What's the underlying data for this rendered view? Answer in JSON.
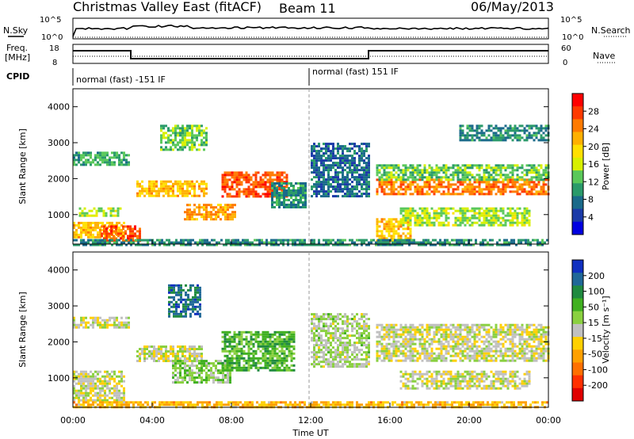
{
  "header": {
    "station": "Christmas Valley East (fitACF)",
    "beam": "Beam 11",
    "date": "06/May/2013"
  },
  "strips": {
    "nsky_label": "N.Sky",
    "nsearch_label": "N.Search",
    "nsky_ticks": [
      "10^5",
      "10^0"
    ],
    "nsearch_ticks": [
      "10^5",
      "10^0"
    ],
    "freq_label_line1": "Freq.",
    "freq_label_line2": "[MHz]",
    "freq_ticks": [
      "18",
      "8"
    ],
    "nave_label": "Nave",
    "nave_ticks": [
      "60",
      "0"
    ],
    "cpid_label": "CPID",
    "cpid_segments": [
      "normal (fast) -151 IF",
      "normal (fast) 151 IF"
    ]
  },
  "axes": {
    "ylabel": "Slant Range [km]",
    "xlabel": "Time UT",
    "x_ticks": [
      "00:00",
      "04:00",
      "08:00",
      "12:00",
      "16:00",
      "20:00",
      "00:00"
    ],
    "y_ticks": [
      "1000",
      "2000",
      "3000",
      "4000"
    ]
  },
  "colorbars": {
    "power_label": "Power [dB]",
    "power_ticks": [
      "28",
      "24",
      "20",
      "16",
      "12",
      "8",
      "4"
    ],
    "power_colors": [
      "#ff0000",
      "#ff3a00",
      "#ff7a00",
      "#ffb000",
      "#ffe000",
      "#d8f000",
      "#5ac85a",
      "#2a9a6a",
      "#1a6a8a",
      "#1a3aa8",
      "#0000e0"
    ],
    "velocity_label": "Velocity [m s⁻¹]",
    "velocity_ticks": [
      "200",
      "100",
      "50",
      "15",
      "-15",
      "-50",
      "-100",
      "-200"
    ],
    "velocity_colors": [
      "#1030c0",
      "#206898",
      "#208a40",
      "#40b020",
      "#8ad040",
      "#c0c0c0",
      "#ffd000",
      "#ffa000",
      "#ff7000",
      "#ff3000",
      "#e00000"
    ]
  },
  "chart_data": [
    {
      "type": "heatmap",
      "title": "Power",
      "xlabel": "Time UT",
      "ylabel": "Slant Range [km]",
      "xlim": [
        0,
        24
      ],
      "ylim": [
        180,
        4500
      ],
      "colorbar_range": [
        0,
        30
      ],
      "colorbar_label": "Power [dB]",
      "regions": [
        {
          "t": [
            0.0,
            2.6
          ],
          "range": [
            350,
            800
          ],
          "value": 20
        },
        {
          "t": [
            1.4,
            3.4
          ],
          "range": [
            300,
            700
          ],
          "value": 26
        },
        {
          "t": [
            0.0,
            2.8
          ],
          "range": [
            2400,
            2750
          ],
          "value": 10
        },
        {
          "t": [
            0.3,
            2.4
          ],
          "range": [
            950,
            1200
          ],
          "value": 14
        },
        {
          "t": [
            3.2,
            6.8
          ],
          "range": [
            1550,
            1950
          ],
          "value": 20
        },
        {
          "t": [
            4.4,
            6.8
          ],
          "range": [
            2800,
            3500
          ],
          "value": 12
        },
        {
          "t": [
            5.6,
            8.2
          ],
          "range": [
            900,
            1300
          ],
          "value": 22
        },
        {
          "t": [
            7.5,
            10.8
          ],
          "range": [
            1500,
            2200
          ],
          "value": 26
        },
        {
          "t": [
            10.0,
            11.8
          ],
          "range": [
            1200,
            1900
          ],
          "value": 8
        },
        {
          "t": [
            12.0,
            15.0
          ],
          "range": [
            1500,
            3000
          ],
          "value": 6
        },
        {
          "t": [
            15.3,
            17.0
          ],
          "range": [
            300,
            900
          ],
          "value": 20
        },
        {
          "t": [
            15.3,
            24.0
          ],
          "range": [
            1600,
            2000
          ],
          "value": 24
        },
        {
          "t": [
            15.3,
            24.0
          ],
          "range": [
            2000,
            2400
          ],
          "value": 12
        },
        {
          "t": [
            16.5,
            23.0
          ],
          "range": [
            700,
            1200
          ],
          "value": 14
        },
        {
          "t": [
            19.5,
            24.0
          ],
          "range": [
            3100,
            3500
          ],
          "value": 8
        },
        {
          "t": [
            0.0,
            24.0
          ],
          "range": [
            180,
            320
          ],
          "value": 8
        }
      ]
    },
    {
      "type": "heatmap",
      "title": "Velocity",
      "xlabel": "Time UT",
      "ylabel": "Slant Range [km]",
      "xlim": [
        0,
        24
      ],
      "ylim": [
        180,
        4500
      ],
      "colorbar_range": [
        -200,
        200
      ],
      "colorbar_label": "Velocity [m s⁻¹]",
      "regions": [
        {
          "t": [
            0.0,
            2.6
          ],
          "range": [
            350,
            1200
          ],
          "value": 0
        },
        {
          "t": [
            0.0,
            2.8
          ],
          "range": [
            2400,
            2700
          ],
          "value": 0
        },
        {
          "t": [
            3.2,
            6.5
          ],
          "range": [
            1500,
            1900
          ],
          "value": 0
        },
        {
          "t": [
            4.8,
            6.4
          ],
          "range": [
            2700,
            3600
          ],
          "value": 150
        },
        {
          "t": [
            5.0,
            8.0
          ],
          "range": [
            900,
            1500
          ],
          "value": 40
        },
        {
          "t": [
            7.5,
            11.2
          ],
          "range": [
            1200,
            2300
          ],
          "value": 80
        },
        {
          "t": [
            12.0,
            15.0
          ],
          "range": [
            1300,
            2800
          ],
          "value": 20
        },
        {
          "t": [
            15.3,
            24.0
          ],
          "range": [
            1500,
            2500
          ],
          "value": 0
        },
        {
          "t": [
            16.5,
            23.0
          ],
          "range": [
            700,
            1200
          ],
          "value": 0
        },
        {
          "t": [
            0.0,
            24.0
          ],
          "range": [
            180,
            350
          ],
          "value": -60
        }
      ]
    }
  ]
}
